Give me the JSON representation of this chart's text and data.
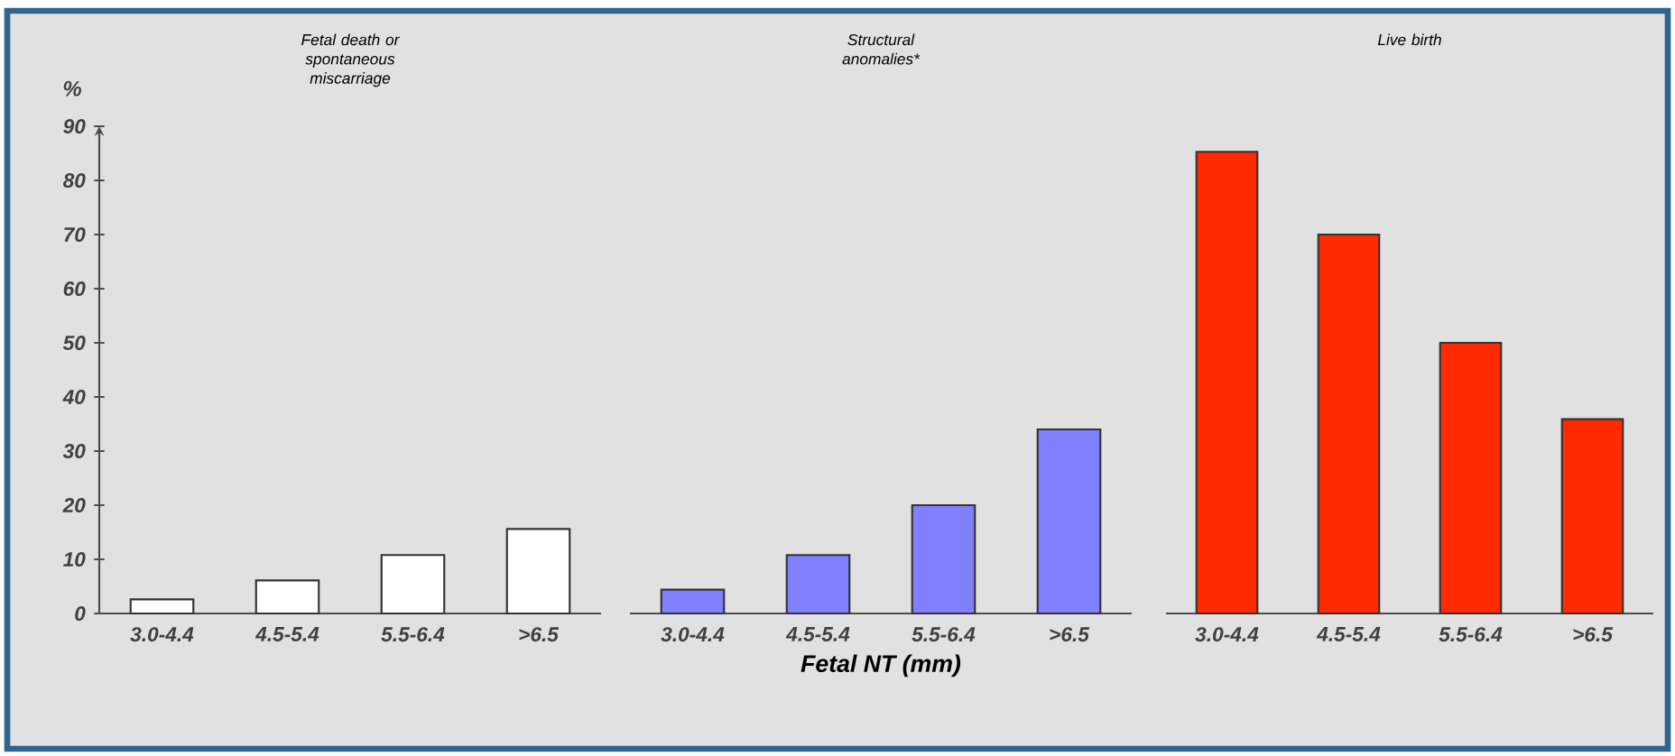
{
  "chart_data": [
    {
      "type": "bar",
      "title": "Fetal death or spontaneous miscarriage",
      "ylabel": "%",
      "categories": [
        "3.0-4.4",
        "4.5-5.4",
        "5.5-6.4",
        ">6.5"
      ],
      "values": [
        2.6,
        6.1,
        10.8,
        15.6
      ],
      "color": "#ffffff",
      "ylim": [
        0,
        90
      ],
      "yticks": [
        0,
        10,
        20,
        30,
        40,
        50,
        60,
        70,
        80,
        90
      ]
    },
    {
      "type": "bar",
      "title": "Structural anomalies*",
      "xlabel": "Fetal NT (mm)",
      "categories": [
        "3.0-4.4",
        "4.5-5.4",
        "5.5-6.4",
        ">6.5"
      ],
      "values": [
        4.4,
        10.8,
        20,
        34
      ],
      "color": "#8080ff",
      "ylim": [
        0,
        90
      ],
      "tick_labels": "x"
    },
    {
      "type": "bar",
      "title": "Live birth",
      "categories": [
        "3.0-4.4",
        "4.5-5.4",
        "5.5-6.4",
        ">6.5"
      ],
      "values": [
        85.3,
        70,
        50,
        35.9
      ],
      "color": "#ff2a00",
      "ylim": [
        0,
        90
      ],
      "tick_labels": "x"
    }
  ]
}
